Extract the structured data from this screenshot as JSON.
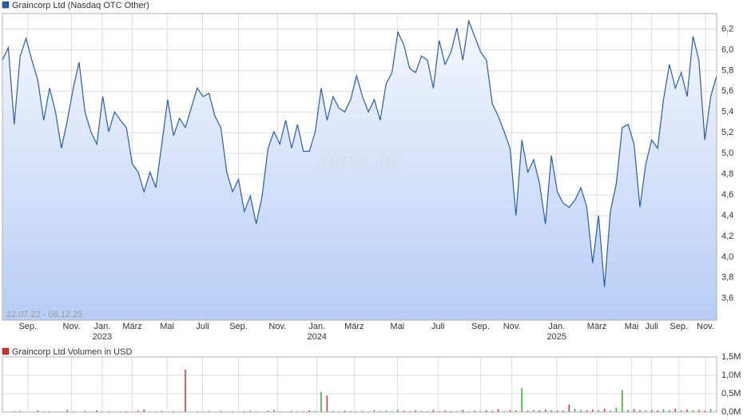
{
  "chart_data": [
    {
      "type": "line",
      "period": "22.07.22 - 06.12.25",
      "watermark": "ARIVA.DE",
      "series": [
        {
          "name": "Graincorp Ltd (Nasdaq OTC Other)",
          "color": "#2a5caa",
          "values": [
            5.9,
            6.02,
            5.28,
            5.94,
            6.11,
            5.9,
            5.71,
            5.32,
            5.63,
            5.4,
            5.05,
            5.32,
            5.63,
            5.88,
            5.4,
            5.21,
            5.09,
            5.55,
            5.21,
            5.4,
            5.32,
            5.25,
            4.9,
            4.82,
            4.63,
            4.82,
            4.67,
            5.09,
            5.52,
            5.17,
            5.34,
            5.25,
            5.44,
            5.63,
            5.55,
            5.58,
            5.36,
            5.25,
            4.82,
            4.63,
            4.75,
            4.44,
            4.59,
            4.32,
            4.59,
            5.05,
            5.21,
            5.09,
            5.32,
            5.05,
            5.28,
            5.02,
            5.02,
            5.21,
            5.63,
            5.32,
            5.55,
            5.44,
            5.4,
            5.52,
            5.75,
            5.55,
            5.4,
            5.52,
            5.32,
            5.67,
            5.78,
            6.17,
            6.05,
            5.82,
            5.78,
            5.94,
            5.9,
            5.63,
            6.09,
            5.86,
            5.98,
            6.21,
            5.9,
            6.28,
            6.13,
            5.98,
            5.9,
            5.48,
            5.36,
            5.21,
            5.05,
            4.4,
            5.13,
            4.82,
            4.94,
            4.71,
            4.32,
            4.98,
            4.63,
            4.52,
            4.48,
            4.55,
            4.67,
            4.48,
            3.94,
            4.4,
            3.71,
            4.44,
            4.71,
            5.25,
            5.28,
            5.09,
            4.48,
            4.9,
            5.13,
            5.05,
            5.52,
            5.86,
            5.63,
            5.78,
            5.55,
            6.13,
            5.9,
            5.13,
            5.55,
            5.75
          ]
        }
      ],
      "xlim": [
        0,
        121
      ],
      "xticks": [
        {
          "value": 4.3,
          "label": "Sep."
        },
        {
          "value": 11.7,
          "label": "Nov."
        },
        {
          "value": 16.9,
          "label": "Jan.",
          "year": "2023"
        },
        {
          "value": 22.0,
          "label": "März"
        },
        {
          "value": 27.9,
          "label": "Mai"
        },
        {
          "value": 33.9,
          "label": "Juli"
        },
        {
          "value": 40.0,
          "label": "Sep."
        },
        {
          "value": 46.6,
          "label": "Nov."
        },
        {
          "value": 53.3,
          "label": "Jan.",
          "year": "2024"
        },
        {
          "value": 59.6,
          "label": "März"
        },
        {
          "value": 66.9,
          "label": "Mai"
        },
        {
          "value": 73.8,
          "label": "Juli"
        },
        {
          "value": 81.0,
          "label": "Sep."
        },
        {
          "value": 86.3,
          "label": "Nov."
        },
        {
          "value": 93.9,
          "label": "Jan.",
          "year": "2025"
        },
        {
          "value": 100.7,
          "label": "März"
        },
        {
          "value": 106.6,
          "label": "Mai"
        },
        {
          "value": 110.0,
          "label": "Juli"
        },
        {
          "value": 114.6,
          "label": "Sep."
        },
        {
          "value": 119.1,
          "label": "Nov."
        }
      ],
      "ylim": [
        3.39,
        6.35
      ],
      "yticks": [
        {
          "value": 3.6,
          "label": "3,6"
        },
        {
          "value": 3.8,
          "label": "3,8"
        },
        {
          "value": 4.0,
          "label": "4,0"
        },
        {
          "value": 4.2,
          "label": "4,2"
        },
        {
          "value": 4.4,
          "label": "4,4"
        },
        {
          "value": 4.6,
          "label": "4,6"
        },
        {
          "value": 4.8,
          "label": "4,8"
        },
        {
          "value": 5.0,
          "label": "5,0"
        },
        {
          "value": 5.2,
          "label": "5,2"
        },
        {
          "value": 5.4,
          "label": "5,4"
        },
        {
          "value": 5.6,
          "label": "5,6"
        },
        {
          "value": 5.8,
          "label": "5,8"
        },
        {
          "value": 6.0,
          "label": "6,0"
        },
        {
          "value": 6.2,
          "label": "6,2"
        }
      ],
      "grid": true
    },
    {
      "type": "bar",
      "series": [
        {
          "name": "Graincorp Ltd Volumen in USD",
          "color": "#cc3333",
          "up_color": "#33aa33",
          "values": [
            15000,
            8000,
            22000,
            30000,
            12000,
            9000,
            40000,
            18000,
            25000,
            10000,
            14000,
            60000,
            20000,
            9000,
            30000,
            12000,
            45000,
            16000,
            22000,
            11000,
            18000,
            25000,
            9000,
            40000,
            70000,
            15000,
            20000,
            30000,
            12000,
            26000,
            18000,
            1150000,
            9000,
            22000,
            14000,
            30000,
            10000,
            28000,
            16000,
            20000,
            12000,
            24000,
            35000,
            18000,
            9000,
            40000,
            60000,
            20000,
            15000,
            30000,
            22000,
            18000,
            45000,
            26000,
            550000,
            450000,
            30000,
            20000,
            38000,
            25000,
            25000,
            30000,
            18000,
            50000,
            22000,
            40000,
            28000,
            60000,
            35000,
            20000,
            45000,
            30000,
            25000,
            55000,
            18000,
            40000,
            30000,
            22000,
            60000,
            25000,
            35000,
            20000,
            45000,
            30000,
            80000,
            25000,
            50000,
            40000,
            650000,
            35000,
            60000,
            45000,
            70000,
            50000,
            40000,
            40000,
            200000,
            85000,
            60000,
            45000,
            70000,
            55000,
            90000,
            40000,
            120000,
            600000,
            65000,
            80000,
            50000,
            45000,
            60000,
            40000,
            75000,
            55000,
            90000,
            50000,
            70000,
            45000,
            60000,
            35000,
            80000,
            40000
          ]
        }
      ],
      "ylim": [
        0,
        1500000
      ],
      "yticks": [
        {
          "value": 0,
          "label": "0,0M"
        },
        {
          "value": 500000,
          "label": "0,5M"
        },
        {
          "value": 1000000,
          "label": "1,0M"
        },
        {
          "value": 1500000,
          "label": "1,5M"
        }
      ],
      "grid": true
    }
  ]
}
